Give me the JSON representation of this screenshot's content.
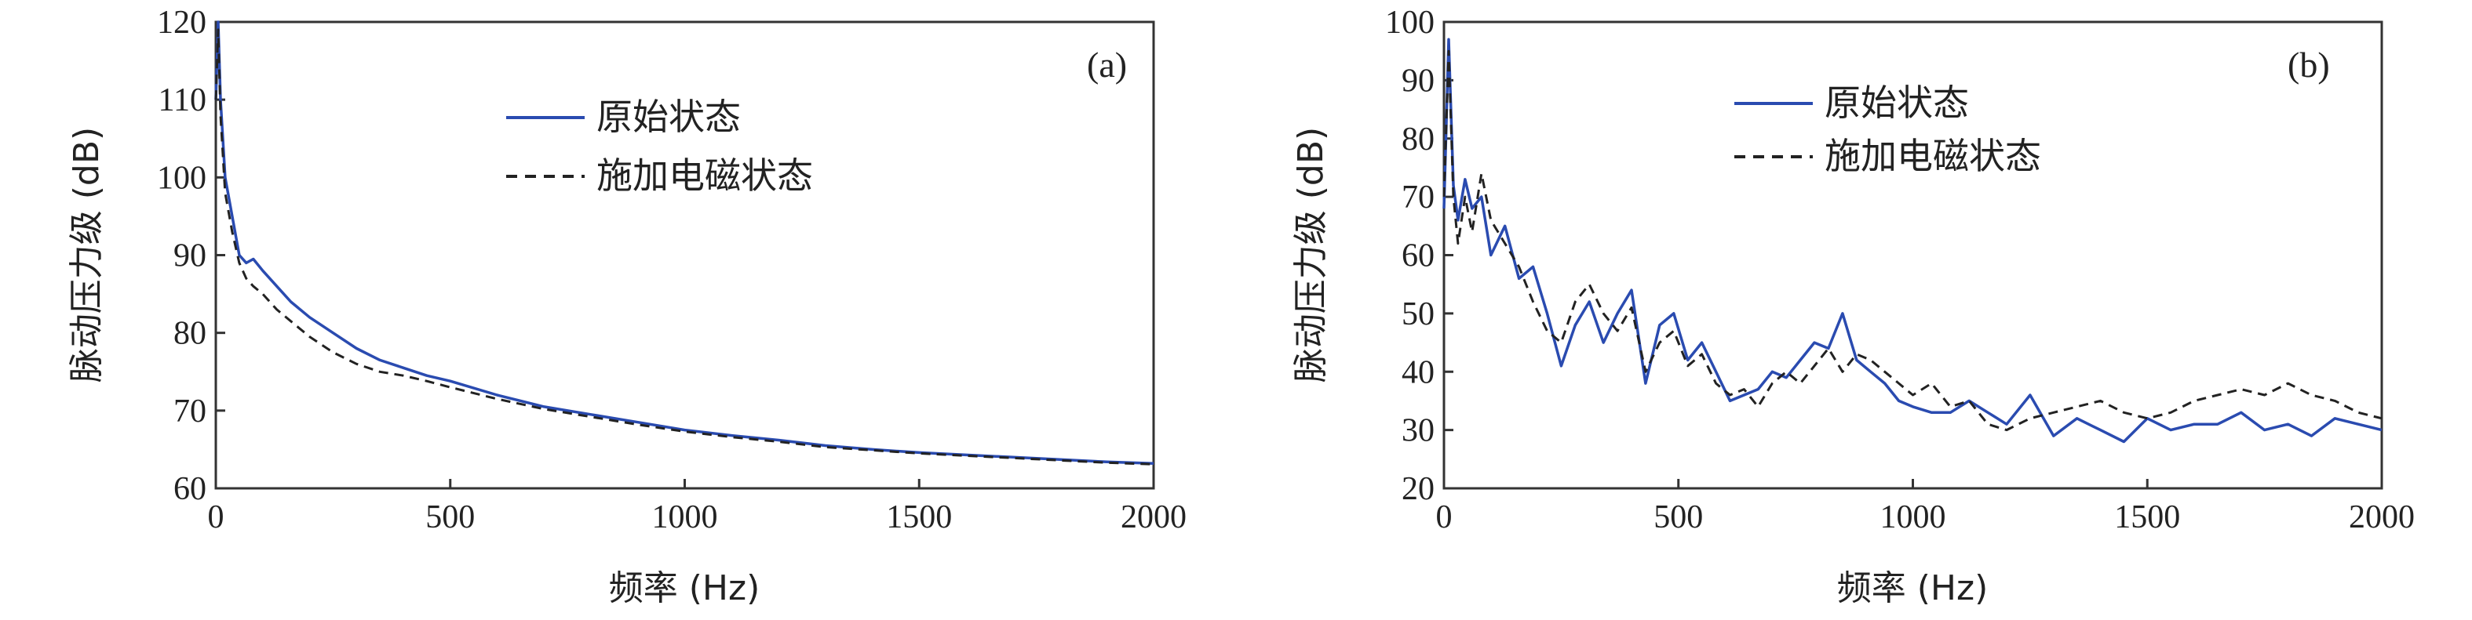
{
  "chart_data": [
    {
      "panel_label": "(a)",
      "type": "line",
      "xlabel": "频率 (Hz)",
      "ylabel": "脉动压力级 (dB)",
      "xlim": [
        0,
        2000
      ],
      "ylim": [
        60,
        120
      ],
      "xticks": [
        0,
        500,
        1000,
        1500,
        2000
      ],
      "yticks": [
        60,
        70,
        80,
        90,
        100,
        110,
        120
      ],
      "legend_position": "top-center",
      "series": [
        {
          "name": "原始状态",
          "color": "#2a4bb0",
          "dash": "solid",
          "x": [
            0,
            5,
            10,
            20,
            35,
            50,
            65,
            80,
            100,
            130,
            160,
            200,
            250,
            300,
            350,
            400,
            450,
            500,
            600,
            700,
            800,
            900,
            1000,
            1100,
            1200,
            1300,
            1400,
            1500,
            1600,
            1700,
            1800,
            1900,
            2000
          ],
          "y": [
            110,
            120,
            110,
            100,
            95,
            90,
            89,
            89.5,
            88,
            86,
            84,
            82,
            80,
            78,
            76.5,
            75.5,
            74.5,
            73.8,
            72,
            70.5,
            69.5,
            68.5,
            67.5,
            66.8,
            66.2,
            65.5,
            65,
            64.6,
            64.3,
            64,
            63.7,
            63.4,
            63.2
          ]
        },
        {
          "name": "施加电磁状态",
          "color": "#222222",
          "dash": "dashed",
          "x": [
            0,
            5,
            10,
            20,
            35,
            50,
            65,
            80,
            100,
            130,
            160,
            200,
            250,
            300,
            350,
            400,
            450,
            500,
            600,
            700,
            800,
            900,
            1000,
            1100,
            1200,
            1300,
            1400,
            1500,
            1600,
            1700,
            1800,
            1900,
            2000
          ],
          "y": [
            110,
            119,
            108,
            98,
            93,
            89,
            87,
            86,
            85,
            83,
            81.5,
            79.5,
            77.5,
            76,
            75,
            74.5,
            73.8,
            73,
            71.5,
            70.2,
            69.2,
            68.2,
            67.3,
            66.6,
            66,
            65.3,
            64.9,
            64.5,
            64.2,
            63.9,
            63.6,
            63.3,
            63.1
          ]
        }
      ]
    },
    {
      "panel_label": "(b)",
      "type": "line",
      "xlabel": "频率 (Hz)",
      "ylabel": "脉动压力级 (dB)",
      "xlim": [
        0,
        2000
      ],
      "ylim": [
        20,
        100
      ],
      "xticks": [
        0,
        500,
        1000,
        1500,
        2000
      ],
      "yticks": [
        20,
        30,
        40,
        50,
        60,
        70,
        80,
        90,
        100
      ],
      "legend_position": "top-center",
      "series": [
        {
          "name": "原始状态",
          "color": "#2a4bb0",
          "dash": "solid",
          "x": [
            0,
            10,
            20,
            30,
            45,
            60,
            80,
            100,
            130,
            160,
            190,
            220,
            250,
            280,
            310,
            340,
            370,
            400,
            430,
            460,
            490,
            520,
            550,
            580,
            610,
            640,
            670,
            700,
            730,
            760,
            790,
            820,
            850,
            880,
            910,
            940,
            970,
            1000,
            1040,
            1080,
            1120,
            1160,
            1200,
            1250,
            1300,
            1350,
            1400,
            1450,
            1500,
            1550,
            1600,
            1650,
            1700,
            1750,
            1800,
            1850,
            1900,
            1950,
            2000
          ],
          "y": [
            68,
            97,
            72,
            66,
            73,
            68,
            70,
            60,
            65,
            56,
            58,
            50,
            41,
            48,
            52,
            45,
            50,
            54,
            38,
            48,
            50,
            42,
            45,
            40,
            35,
            36,
            37,
            40,
            39,
            42,
            45,
            44,
            50,
            42,
            40,
            38,
            35,
            34,
            33,
            33,
            35,
            33,
            31,
            36,
            29,
            32,
            30,
            28,
            32,
            30,
            31,
            31,
            33,
            30,
            31,
            29,
            32,
            31,
            30
          ]
        },
        {
          "name": "施加电磁状态",
          "color": "#222222",
          "dash": "dashed",
          "x": [
            0,
            10,
            20,
            30,
            45,
            60,
            80,
            100,
            130,
            160,
            190,
            220,
            250,
            280,
            310,
            340,
            370,
            400,
            430,
            460,
            490,
            520,
            550,
            580,
            610,
            640,
            670,
            700,
            730,
            760,
            790,
            820,
            850,
            880,
            910,
            940,
            970,
            1000,
            1040,
            1080,
            1120,
            1160,
            1200,
            1250,
            1300,
            1350,
            1400,
            1450,
            1500,
            1550,
            1600,
            1650,
            1700,
            1750,
            1800,
            1850,
            1900,
            1950,
            2000
          ],
          "y": [
            70,
            95,
            70,
            62,
            70,
            64,
            74,
            66,
            62,
            58,
            52,
            47,
            45,
            52,
            55,
            50,
            47,
            51,
            40,
            45,
            47,
            41,
            43,
            38,
            36,
            37,
            34,
            38,
            40,
            38,
            41,
            44,
            40,
            43,
            42,
            40,
            38,
            36,
            38,
            34,
            35,
            31,
            30,
            32,
            33,
            34,
            35,
            33,
            32,
            33,
            35,
            36,
            37,
            36,
            38,
            36,
            35,
            33,
            32
          ]
        }
      ]
    }
  ]
}
